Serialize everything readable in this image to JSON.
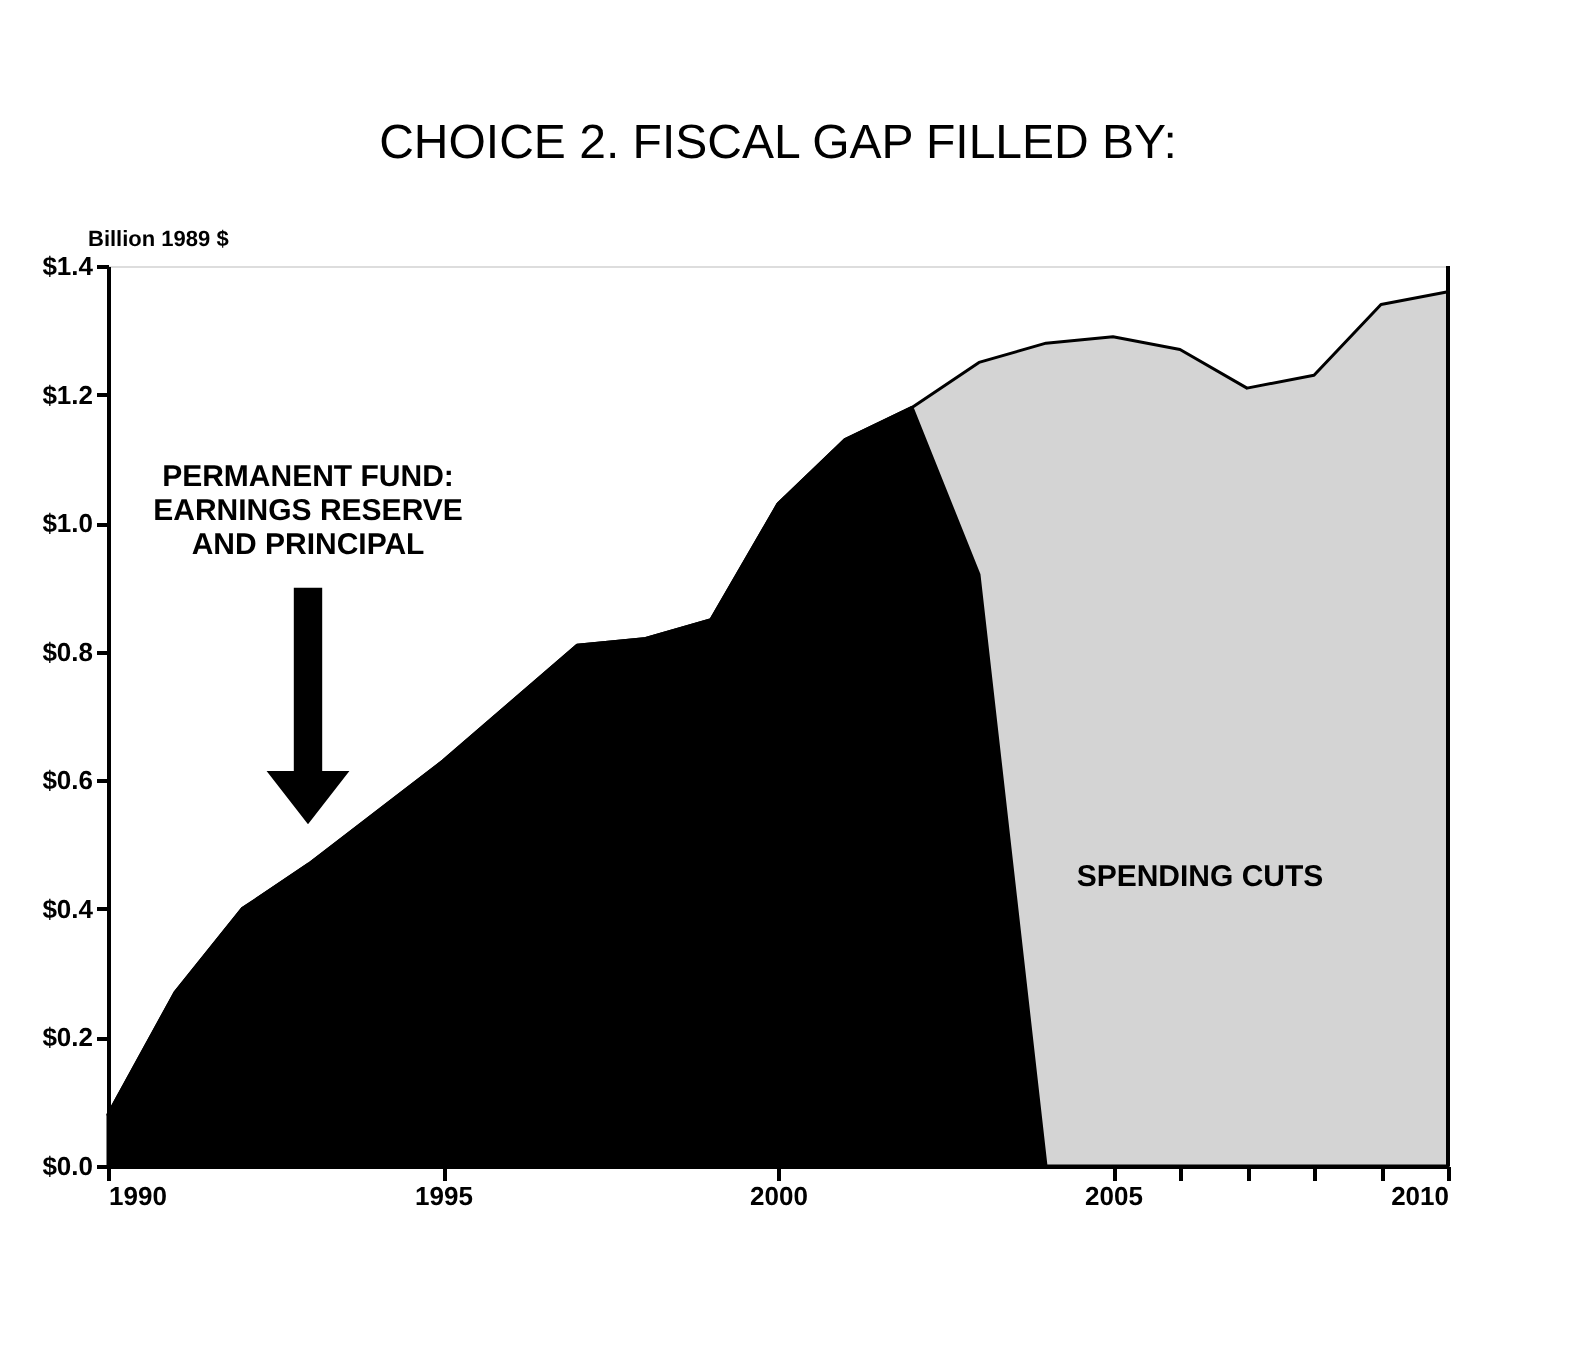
{
  "chart_data": {
    "type": "area",
    "stacked": true,
    "title": "CHOICE 2. FISCAL GAP FILLED BY:",
    "ylabel": "Billion 1989 $",
    "x": [
      1990,
      1991,
      1992,
      1993,
      1994,
      1995,
      1996,
      1997,
      1998,
      1999,
      2000,
      2001,
      2002,
      2003,
      2004,
      2005,
      2006,
      2007,
      2008,
      2009,
      2010
    ],
    "series": [
      {
        "color": "#000000",
        "values": [
          0.08,
          0.27,
          0.4,
          0.47,
          0.55,
          0.63,
          0.72,
          0.81,
          0.82,
          0.85,
          1.03,
          1.13,
          1.18,
          0.92,
          0,
          0,
          0,
          0,
          0,
          0,
          0
        ]
      },
      {
        "color": "#d4d4d4",
        "values": [
          0,
          0,
          0,
          0,
          0,
          0,
          0,
          0,
          0,
          0,
          0,
          0,
          0,
          0.33,
          1.28,
          1.29,
          1.27,
          1.21,
          1.23,
          1.34,
          1.36
        ]
      }
    ],
    "xlim": [
      1990,
      2010
    ],
    "xticks": [
      1990,
      1995,
      2000,
      2005,
      {
        "value": 2006,
        "label": null
      },
      {
        "value": 2007,
        "label": null
      },
      {
        "value": 2008,
        "label": null
      },
      {
        "value": 2009,
        "label": null
      },
      2010
    ],
    "ylim": [
      0,
      1.4
    ],
    "yticks": [
      {
        "value": 0,
        "label": "$0.0"
      },
      {
        "value": 0.2,
        "label": "$0.2"
      },
      {
        "value": 0.4,
        "label": "$0.4"
      },
      {
        "value": 0.6,
        "label": "$0.6"
      },
      {
        "value": 0.8,
        "label": "$0.8"
      },
      {
        "value": 1.0,
        "label": "$1.0"
      },
      {
        "value": 1.2,
        "label": "$1.2"
      },
      {
        "value": 1.4,
        "label": "$1.4"
      }
    ],
    "annotations": [
      "PERMANENT FUND: EARNINGS RESERVE AND PRINCIPAL",
      "SPENDING CUTS"
    ],
    "grid": false
  }
}
